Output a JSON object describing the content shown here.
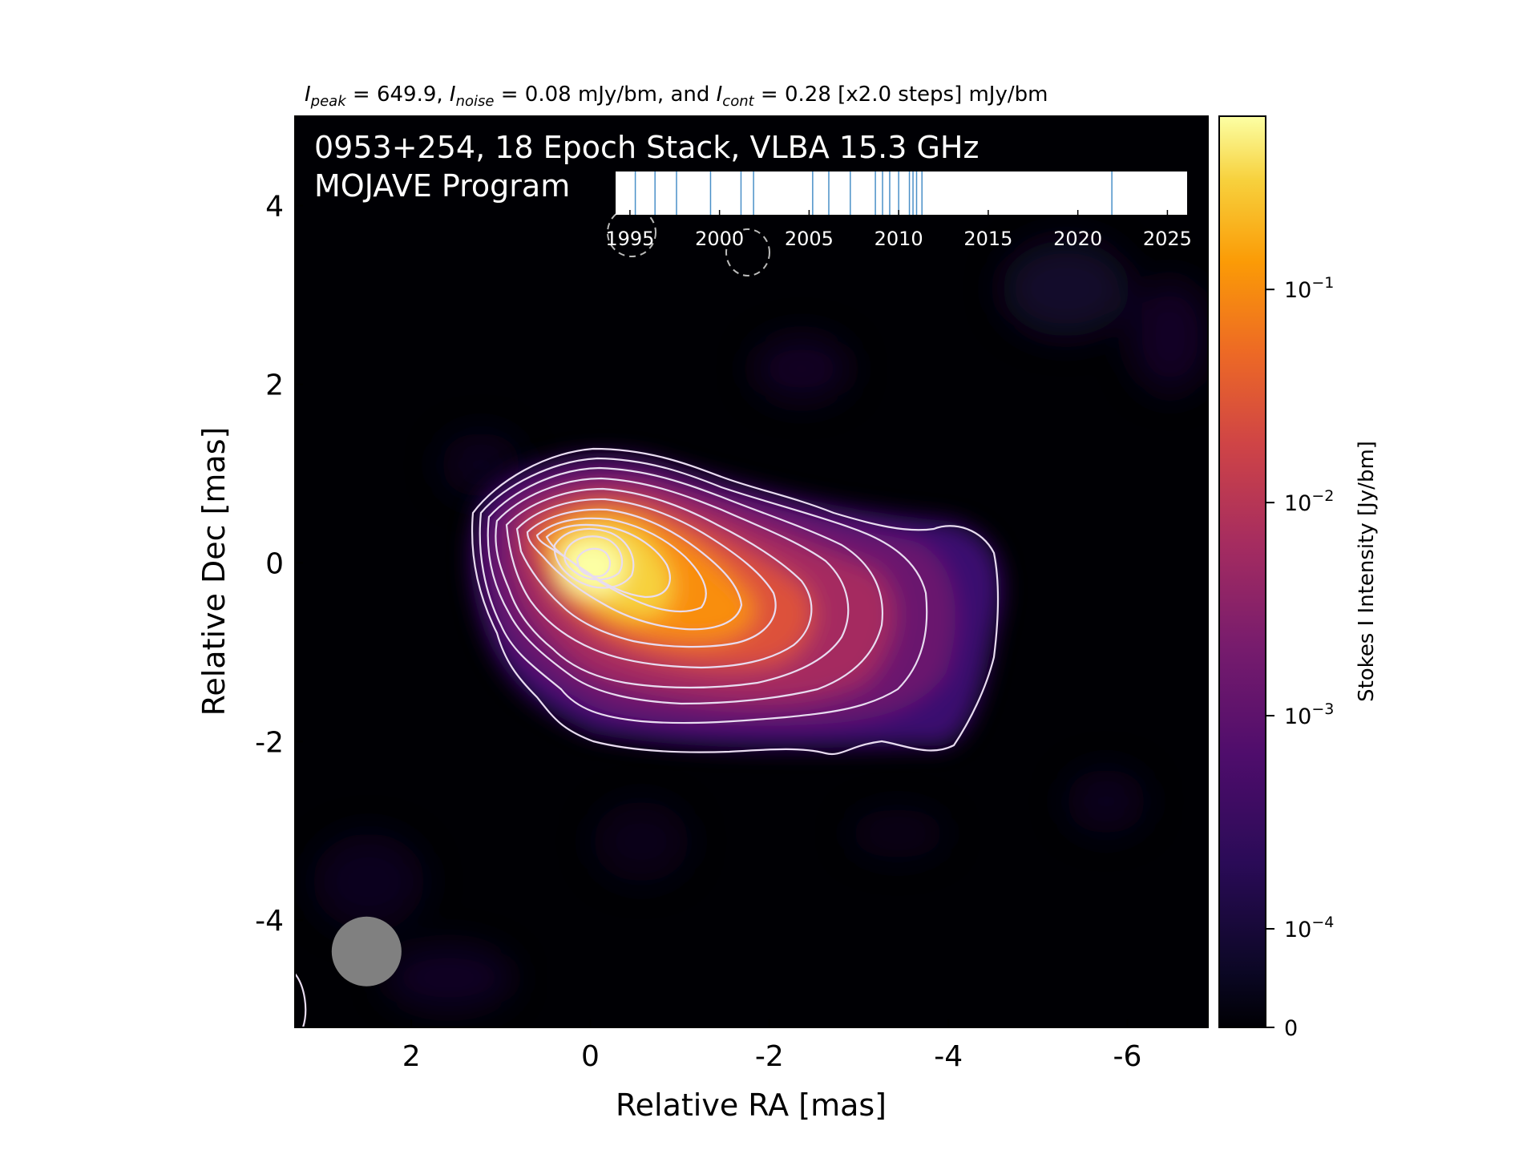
{
  "header": {
    "peak_label": "I",
    "peak_sub": "peak",
    "peak_value": " = 649.9, ",
    "noise_label": "I",
    "noise_sub": "noise",
    "noise_value": " = 0.08 mJy/bm, and ",
    "cont_label": "I",
    "cont_sub": "cont",
    "cont_value": " = 0.28 [x2.0 steps] mJy/bm"
  },
  "chart_data": {
    "type": "heatmap",
    "title_line1": "0953+254, 18 Epoch Stack, VLBA 15.3 GHz",
    "title_line2": "MOJAVE Program",
    "xlabel": "Relative RA [mas]",
    "ylabel": "Relative Dec [mas]",
    "xlim": [
      3.3,
      -6.9
    ],
    "ylim": [
      -5.2,
      5.0
    ],
    "x_ticks": [
      2,
      0,
      -2,
      -4,
      -6
    ],
    "x_tick_labels": [
      "2",
      "0",
      "-2",
      "-4",
      "-6"
    ],
    "y_ticks": [
      4,
      2,
      0,
      -2,
      -4
    ],
    "y_tick_labels": [
      "4",
      "2",
      "0",
      "-2",
      "-4"
    ],
    "colormap": "inferno",
    "colorbar": {
      "label": "Stokes I Intensity [Jy/bm]",
      "scale": "log",
      "ticks": [
        {
          "value": 0.1,
          "base": "10",
          "exp": "−1"
        },
        {
          "value": 0.01,
          "base": "10",
          "exp": "−2"
        },
        {
          "value": 0.001,
          "base": "10",
          "exp": "−3"
        },
        {
          "value": 0.0001,
          "base": "10",
          "exp": "−4"
        },
        {
          "value": 0,
          "base": "0",
          "exp": ""
        }
      ],
      "max": 0.65,
      "min_label": "0"
    },
    "core": {
      "ra": 0.0,
      "dec": 0.0
    },
    "peak_intensity_mjy_bm": 649.9,
    "noise_mjy_bm": 0.08,
    "lowest_contour_mjy_bm": 0.28,
    "contour_step_factor": 2.0,
    "contour_color": "#e8dcf0",
    "beam": {
      "ra": 2.5,
      "dec": -4.35,
      "major_mas": 0.78,
      "minor_mas": 0.78,
      "color": "#808080"
    },
    "epoch_timeline": {
      "x_ticks": [
        1995,
        2000,
        2005,
        2010,
        2015,
        2020,
        2025
      ],
      "x_tick_labels": [
        "1995",
        "2000",
        "2005",
        "2010",
        "2015",
        "2020",
        "2025"
      ],
      "xlim": [
        1994.2,
        2026.1
      ],
      "epochs": [
        1995.3,
        1996.4,
        1997.6,
        1999.5,
        2001.2,
        2001.9,
        2005.2,
        2006.1,
        2007.3,
        2008.7,
        2009.1,
        2009.5,
        2010.0,
        2010.6,
        2010.8,
        2011.0,
        2011.3,
        2021.9
      ],
      "line_color": "#4a90c8"
    }
  }
}
